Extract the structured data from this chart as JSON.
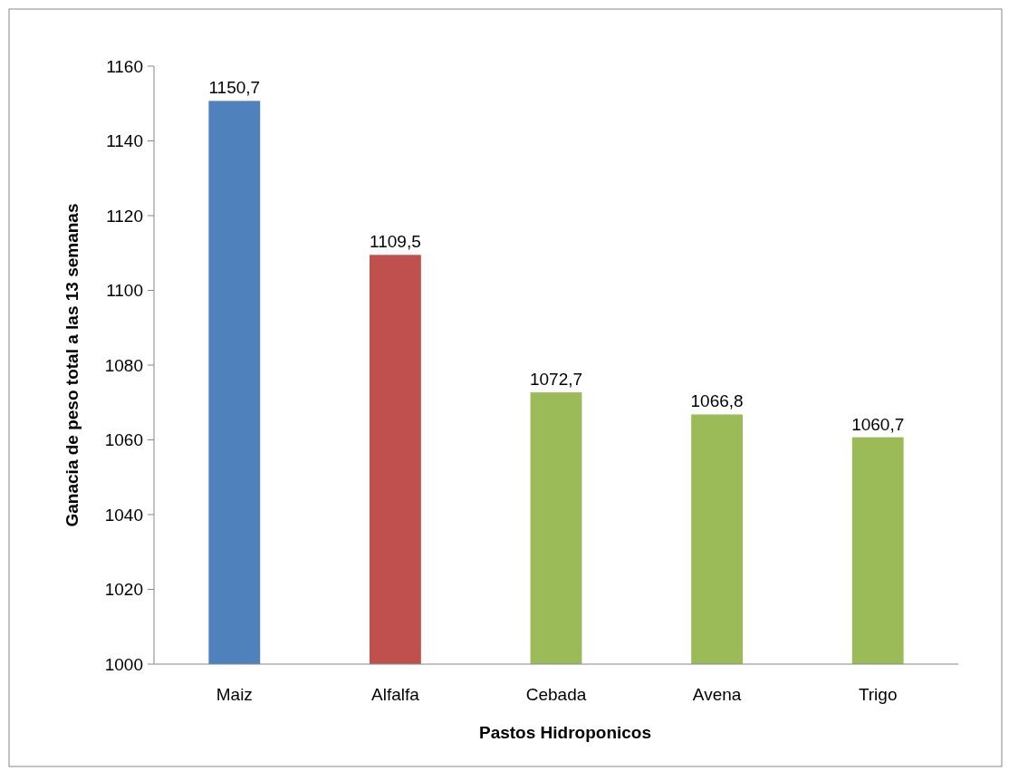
{
  "chart_data": {
    "type": "bar",
    "xlabel": "Pastos Hidroponicos",
    "ylabel": "Ganacia de peso total a las 13 semanas",
    "categories": [
      "Maiz",
      "Alfalfa",
      "Cebada",
      "Avena",
      "Trigo"
    ],
    "values": [
      1150.7,
      1109.5,
      1072.7,
      1066.8,
      1060.7
    ],
    "value_labels": [
      "1150,7",
      "1109,5",
      "1072,7",
      "1066,8",
      "1060,7"
    ],
    "colors": [
      "#4f81bd",
      "#c0504d",
      "#9bbb59",
      "#9bbb59",
      "#9bbb59"
    ],
    "ylim": [
      1000,
      1160
    ],
    "yticks": [
      1000,
      1020,
      1040,
      1060,
      1080,
      1100,
      1120,
      1140,
      1160
    ],
    "grid": false
  }
}
